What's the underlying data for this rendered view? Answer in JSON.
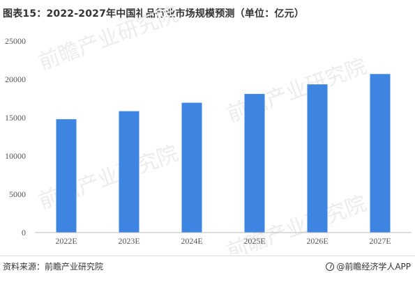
{
  "title": "图表15：2022-2027年中国礼品行业市场规模预测（单位：亿元）",
  "source": "资料来源：前瞻产业研究院",
  "brand": "@前瞻经济学人APP",
  "watermark": "前瞻产业研究院",
  "colors": {
    "bar": "#3d85e0",
    "axis": "#bbbbbb",
    "text": "#555555"
  },
  "chart_data": {
    "type": "bar",
    "categories": [
      "2022E",
      "2023E",
      "2024E",
      "2025E",
      "2026E",
      "2027E"
    ],
    "values": [
      14800,
      15850,
      16950,
      18100,
      19350,
      20700
    ],
    "ylim": [
      0,
      25000
    ],
    "yticks": [
      0,
      5000,
      10000,
      15000,
      20000,
      25000
    ],
    "grid": false,
    "legend": "none"
  }
}
